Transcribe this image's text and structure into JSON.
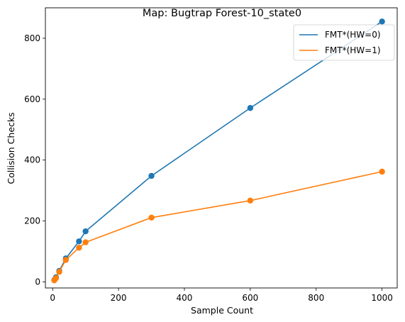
{
  "chart_data": {
    "type": "line",
    "title": "Map: Bugtrap Forest-10_state0",
    "xlabel": "Sample Count",
    "ylabel": "Collision Checks",
    "xlim": [
      -22,
      1046
    ],
    "ylim": [
      -20,
      900
    ],
    "xticks": [
      0,
      200,
      400,
      600,
      800,
      1000
    ],
    "yticks": [
      0,
      200,
      400,
      600,
      800
    ],
    "grid": false,
    "legend_position": "top-right",
    "markers": true,
    "series": [
      {
        "name": "FMT*(HW=0)",
        "color": "#1f77b4",
        "x": [
          5,
          10,
          20,
          40,
          80,
          100,
          300,
          600,
          1000
        ],
        "y": [
          6,
          15,
          36,
          77,
          133,
          166,
          348,
          571,
          855
        ]
      },
      {
        "name": "FMT*(HW=1)",
        "color": "#ff7f0e",
        "x": [
          5,
          10,
          20,
          40,
          80,
          100,
          300,
          600,
          1000
        ],
        "y": [
          5,
          12,
          33,
          72,
          112,
          130,
          211,
          267,
          362
        ]
      }
    ]
  }
}
